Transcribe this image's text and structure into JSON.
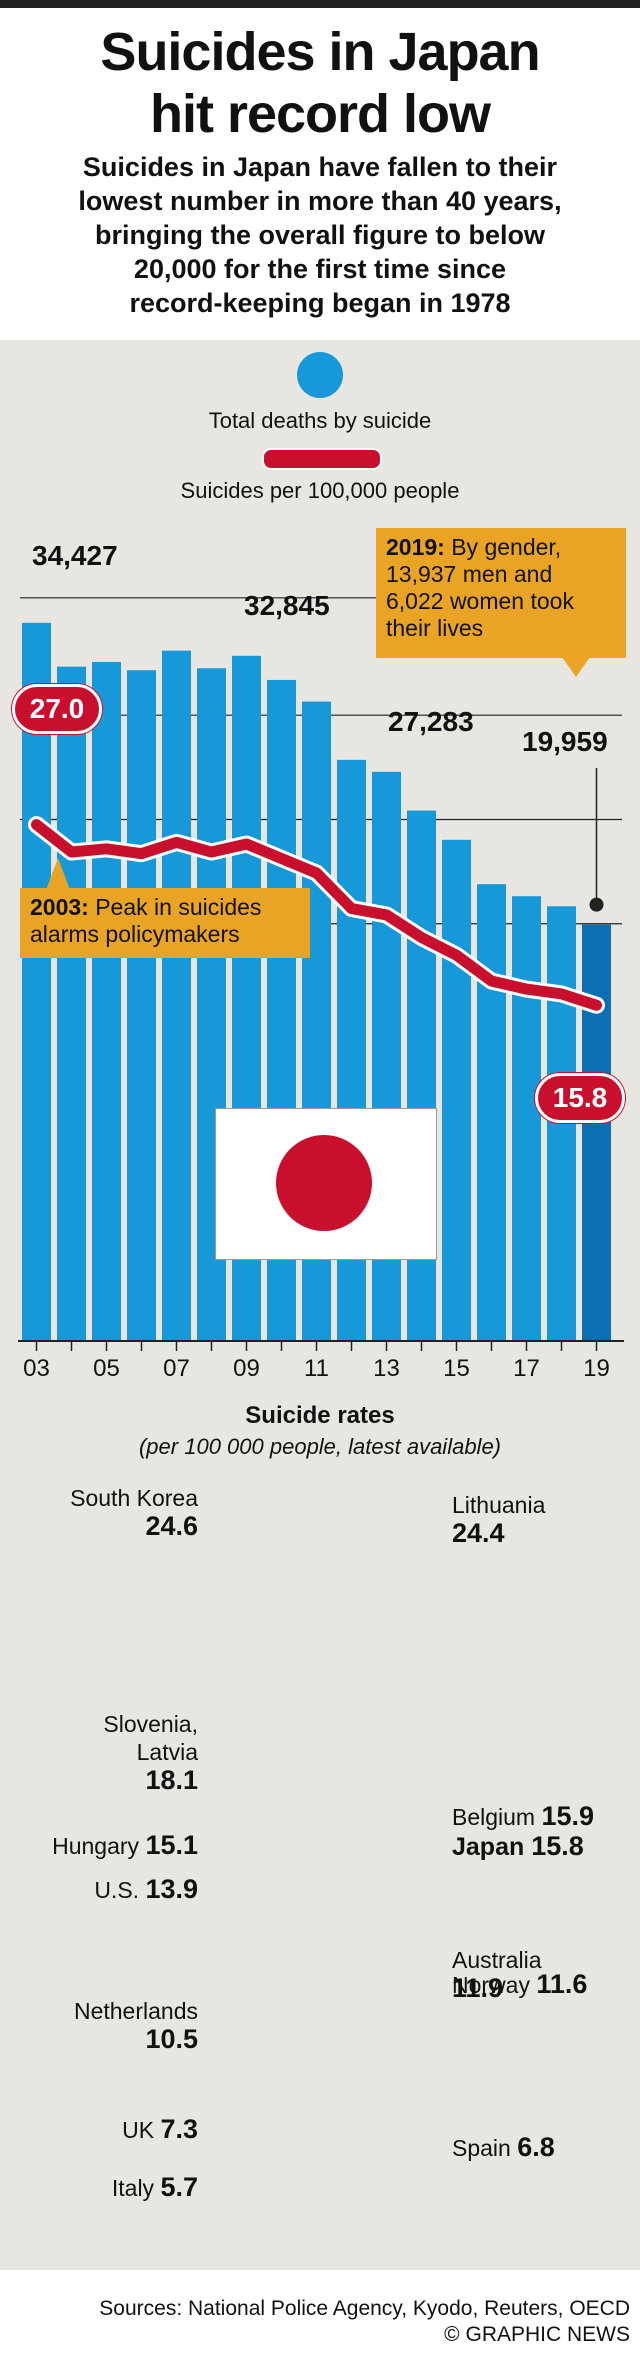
{
  "title_line1": "Suicides in Japan",
  "title_line2": "hit record low",
  "subtitle_lines": [
    "Suicides in Japan have fallen to their",
    "lowest number in more than 40 years,",
    "bringing the overall figure to below",
    "20,000 for the first time since",
    "record-keeping began in 1978"
  ],
  "legend": {
    "bars": "Total deaths by suicide",
    "line": "Suicides per 100,000 people"
  },
  "labels": {
    "v2003": "34,427",
    "v2009": "32,845",
    "v2013": "27,283",
    "v2019": "19,959",
    "r2003": "27.0",
    "r2019": "15.8"
  },
  "callouts": {
    "c2019_year": "2019:",
    "c2019_text_a": " By gender,",
    "c2019_text_b": "13,937 men and",
    "c2019_text_c": "6,022 women took",
    "c2019_text_d": "their lives",
    "c2003_year": "2003:",
    "c2003_text_a": " Peak in suicides",
    "c2003_text_b": "alarms policymakers"
  },
  "colors": {
    "bar": "#1798d8",
    "bar_last": "#0d6fb3",
    "line": "#c8102e",
    "callout": "#e9a425",
    "panel": "#e8e6e1"
  },
  "chart_data": [
    {
      "type": "bar",
      "x": [
        2003,
        2004,
        2005,
        2006,
        2007,
        2008,
        2009,
        2010,
        2011,
        2012,
        2013,
        2014,
        2015,
        2016,
        2017,
        2018,
        2019
      ],
      "xticks": [
        "03",
        "05",
        "07",
        "09",
        "11",
        "13",
        "15",
        "17",
        "19"
      ],
      "series": [
        {
          "name": "Total deaths by suicide",
          "values": [
            34427,
            32325,
            32552,
            32155,
            33093,
            32249,
            32845,
            31690,
            30651,
            27858,
            27283,
            25427,
            24025,
            21897,
            21321,
            20840,
            19959
          ]
        },
        {
          "name": "Suicides per 100,000 people",
          "type": "line",
          "values": [
            27.0,
            25.3,
            25.5,
            25.2,
            25.9,
            25.3,
            25.8,
            24.9,
            24.0,
            21.8,
            21.4,
            20.0,
            18.9,
            17.3,
            16.8,
            16.5,
            15.8
          ]
        }
      ],
      "ylim": [
        0,
        36000
      ]
    },
    {
      "type": "bar",
      "title": "Suicide rates",
      "subtitle": "(per 100 000 people, latest available)",
      "categories": [
        "South Korea",
        "Lithuania",
        "Slovenia, Latvia",
        "Belgium",
        "Japan",
        "Hungary",
        "U.S.",
        "Australia",
        "Norway",
        "Netherlands",
        "UK",
        "Spain",
        "Italy"
      ],
      "values": [
        24.6,
        24.4,
        18.1,
        15.9,
        15.8,
        15.1,
        13.9,
        11.9,
        11.6,
        10.5,
        7.3,
        6.8,
        5.7
      ]
    }
  ],
  "rates_title": "Suicide rates",
  "rates_sub": "(per 100 000 people, latest available)",
  "countries_left": [
    {
      "name_a": "South Korea",
      "name_b": "",
      "val": "24.6"
    },
    {
      "name_a": "Slovenia,",
      "name_b": "Latvia",
      "val": "18.1"
    },
    {
      "name_a": "Hungary",
      "name_b": "",
      "val": "15.1"
    },
    {
      "name_a": "U.S.",
      "name_b": "",
      "val": "13.9"
    },
    {
      "name_a": "Netherlands",
      "name_b": "",
      "val": "10.5"
    },
    {
      "name_a": "UK",
      "name_b": "",
      "val": "7.3"
    },
    {
      "name_a": "Italy",
      "name_b": "",
      "val": "5.7"
    }
  ],
  "countries_right": [
    {
      "name": "Lithuania",
      "val": "24.4"
    },
    {
      "name": "Belgium",
      "val": "15.9"
    },
    {
      "name": "Japan",
      "val": "15.8"
    },
    {
      "name": "Australia",
      "val": "11.9"
    },
    {
      "name": "Norway",
      "val": "11.6"
    },
    {
      "name": "Spain",
      "val": "6.8"
    }
  ],
  "sources": "Sources: National Police Agency, Kyodo, Reuters, OECD",
  "copyright": "© GRAPHIC NEWS"
}
